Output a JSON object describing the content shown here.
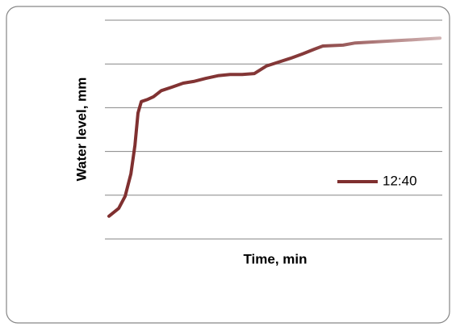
{
  "chart_data": {
    "type": "line",
    "x_label": "Time, min",
    "y_label": "Water level, mm",
    "x": [
      1.2,
      4.1,
      6.0,
      7.7,
      8.9,
      9.8,
      10.8,
      12.7,
      14.4,
      16.7,
      19.9,
      23.2,
      26.3,
      29.9,
      33.5,
      37.1,
      40.7,
      44.3,
      47.8,
      51.4,
      55.0,
      58.6,
      62.2,
      64.6,
      70.6,
      74.2,
      78.9,
      83.7,
      88.5,
      93.3,
      99.3
    ],
    "series": [
      {
        "name": "12:40",
        "color": "#7f2f2f",
        "values": [
          0.52,
          0.7,
          0.98,
          1.49,
          2.14,
          2.88,
          3.14,
          3.19,
          3.25,
          3.39,
          3.47,
          3.56,
          3.6,
          3.67,
          3.73,
          3.76,
          3.76,
          3.78,
          3.95,
          4.04,
          4.13,
          4.23,
          4.34,
          4.41,
          4.43,
          4.48,
          4.5,
          4.52,
          4.54,
          4.56,
          4.59
        ]
      }
    ],
    "xlim": [
      0,
      100
    ],
    "ylim": [
      0,
      5
    ],
    "yticks": [
      0,
      1,
      2,
      3,
      4,
      5
    ],
    "grid": true,
    "legend": "right"
  }
}
